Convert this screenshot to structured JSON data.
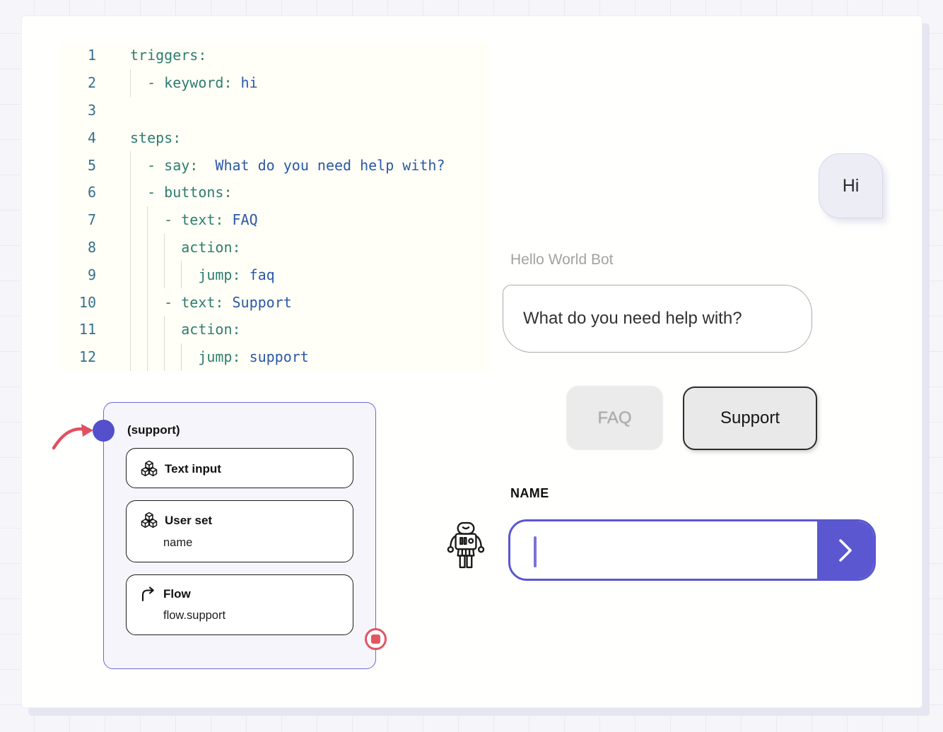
{
  "colors": {
    "accent_purple": "#5a57d0",
    "code_key": "#2e7d6f",
    "code_value": "#2b59a6",
    "line_number": "#35718e",
    "handle_red": "#e25563",
    "arrow_red": "#e0505f"
  },
  "code_editor": {
    "lines": [
      {
        "num": "1",
        "indent": 0,
        "segments": [
          {
            "t": "triggers:",
            "c": "key"
          }
        ]
      },
      {
        "num": "2",
        "indent": 1,
        "segments": [
          {
            "t": "- keyword: ",
            "c": "key"
          },
          {
            "t": "hi",
            "c": "val"
          }
        ]
      },
      {
        "num": "3",
        "indent": 0,
        "segments": []
      },
      {
        "num": "4",
        "indent": 0,
        "segments": [
          {
            "t": "steps:",
            "c": "key"
          }
        ]
      },
      {
        "num": "5",
        "indent": 1,
        "segments": [
          {
            "t": "- say:  ",
            "c": "key"
          },
          {
            "t": "What do you need help with?",
            "c": "val"
          }
        ]
      },
      {
        "num": "6",
        "indent": 1,
        "segments": [
          {
            "t": "- buttons:",
            "c": "key"
          }
        ]
      },
      {
        "num": "7",
        "indent": 2,
        "segments": [
          {
            "t": "- text: ",
            "c": "key"
          },
          {
            "t": "FAQ",
            "c": "val"
          }
        ]
      },
      {
        "num": "8",
        "indent": 3,
        "segments": [
          {
            "t": "action:",
            "c": "key"
          }
        ]
      },
      {
        "num": "9",
        "indent": 4,
        "segments": [
          {
            "t": "jump: ",
            "c": "key"
          },
          {
            "t": "faq",
            "c": "val"
          }
        ]
      },
      {
        "num": "10",
        "indent": 2,
        "segments": [
          {
            "t": "- text: ",
            "c": "key"
          },
          {
            "t": "Support",
            "c": "val"
          }
        ]
      },
      {
        "num": "11",
        "indent": 3,
        "segments": [
          {
            "t": "action:",
            "c": "key"
          }
        ]
      },
      {
        "num": "12",
        "indent": 4,
        "segments": [
          {
            "t": "jump: ",
            "c": "key"
          },
          {
            "t": "support",
            "c": "val"
          }
        ]
      }
    ]
  },
  "flow_node": {
    "title": "(support)",
    "start_handle_icon": "connection-dot-icon",
    "end_handle_icon": "stop-square-icon",
    "cards": [
      {
        "icon": "cubes-icon",
        "label": "Text input",
        "sub": ""
      },
      {
        "icon": "cubes-icon",
        "label": "User set",
        "sub": "name"
      },
      {
        "icon": "flow-arrow-icon",
        "label": "Flow",
        "sub": "flow.support"
      }
    ]
  },
  "chat": {
    "user_bubble": "Hi",
    "bot_name": "Hello World Bot",
    "bot_message": "What do you need help with?",
    "buttons": [
      {
        "label": "FAQ",
        "state": "dimmed"
      },
      {
        "label": "Support",
        "state": "active"
      }
    ],
    "input": {
      "label": "NAME",
      "value": "",
      "send_icon": "chevron-right-icon",
      "avatar_icon": "robot-icon"
    }
  }
}
